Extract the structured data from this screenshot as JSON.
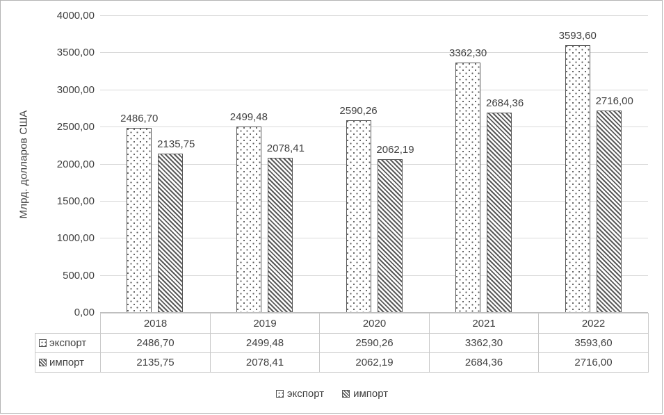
{
  "colors": {
    "pattern_fg": "#595959",
    "bar_border": "#595959",
    "text": "#404040",
    "gridline": "#D9D9D9",
    "axis_line": "#BFBFBF",
    "table_border": "#C9C9C9",
    "background": "#FFFFFF",
    "outer_border": "#B3B3B3"
  },
  "chart_data": {
    "type": "bar",
    "title": "",
    "categories": [
      "2018",
      "2019",
      "2020",
      "2021",
      "2022"
    ],
    "series": [
      {
        "name": "экспорт",
        "pattern": "dotted",
        "values": [
          2486.7,
          2499.48,
          2590.26,
          3362.3,
          3593.6
        ],
        "labels": [
          "2486,70",
          "2499,48",
          "2590,26",
          "3362,30",
          "3593,60"
        ]
      },
      {
        "name": "импорт",
        "pattern": "diagonal-hatch",
        "values": [
          2135.75,
          2078.41,
          2062.19,
          2684.36,
          2716.0
        ],
        "labels": [
          "2135,75",
          "2078,41",
          "2062,19",
          "2684,36",
          "2716,00"
        ]
      }
    ],
    "ylabel": "Млрд. долларов США",
    "xlabel": "",
    "ylim": [
      0,
      4000
    ],
    "ytick_step": 500,
    "ytick_labels": [
      "0,00",
      "500,00",
      "1000,00",
      "1500,00",
      "2000,00",
      "2500,00",
      "3000,00",
      "3500,00",
      "4000,00"
    ],
    "grid": true,
    "legend_position": "bottom",
    "data_table_shown": true
  }
}
